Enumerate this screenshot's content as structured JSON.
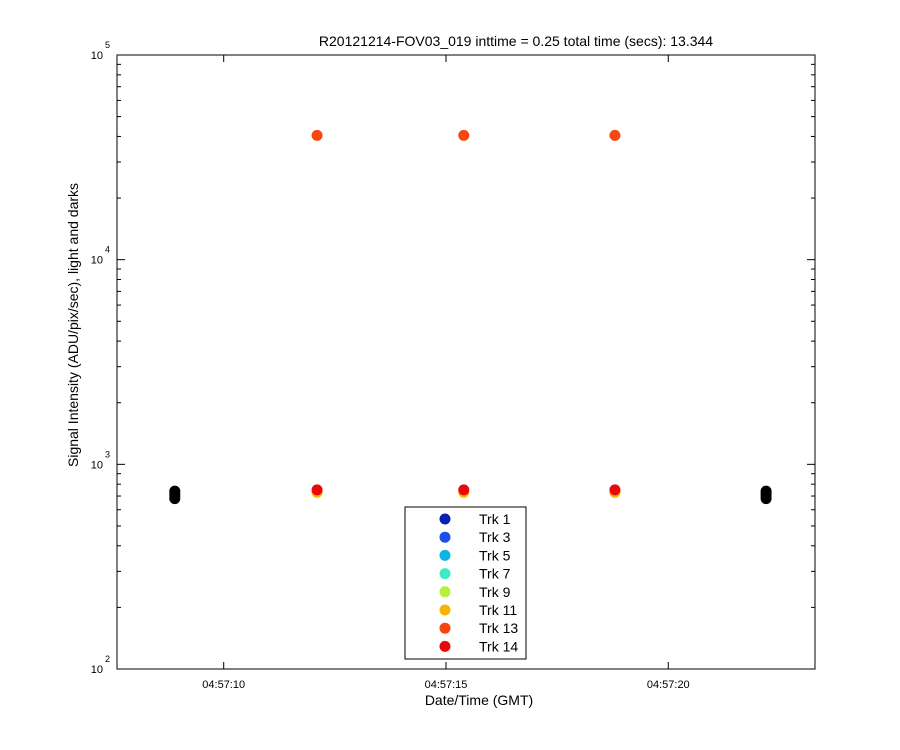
{
  "chart_data": {
    "type": "scatter",
    "title": "R20121214-FOV03_019 inttime = 0.25 total time (secs): 13.344",
    "xlabel": "Date/Time (GMT)",
    "ylabel": "Signal Intensity (ADU/pix/sec), light and darks",
    "y_scale": "log",
    "ylim": [
      100,
      100000
    ],
    "xlim": [
      "04:57:07.6",
      "04:57:23.3"
    ],
    "x_ticks": [
      "04:57:10",
      "04:57:15",
      "04:57:20"
    ],
    "y_ticks": [
      {
        "base": "10",
        "exp": "2",
        "value": 100
      },
      {
        "base": "10",
        "exp": "3",
        "value": 1000
      },
      {
        "base": "10",
        "exp": "4",
        "value": 10000
      },
      {
        "base": "10",
        "exp": "5",
        "value": 100000
      }
    ],
    "grid": false,
    "legend_position": "bottom-center",
    "series": [
      {
        "name": "Trk 1",
        "color": "#0a1fb4",
        "points": []
      },
      {
        "name": "Trk 3",
        "color": "#1d4ff0",
        "points": []
      },
      {
        "name": "Trk 5",
        "color": "#0ab4e6",
        "points": []
      },
      {
        "name": "Trk 7",
        "color": "#3ceac8",
        "points": []
      },
      {
        "name": "Trk 9",
        "color": "#b4f03c",
        "points": []
      },
      {
        "name": "Trk 11",
        "color": "#f8b400",
        "points": [
          [
            "04:57:12.1",
            730
          ],
          [
            "04:57:15.4",
            730
          ],
          [
            "04:57:18.8",
            730
          ]
        ]
      },
      {
        "name": "Trk 13",
        "color": "#f84610",
        "points": [
          [
            "04:57:12.1",
            40500
          ],
          [
            "04:57:15.4",
            40500
          ],
          [
            "04:57:18.8",
            40500
          ]
        ]
      },
      {
        "name": "Trk 14",
        "color": "#e80a0a",
        "points": [
          [
            "04:57:12.1",
            750
          ],
          [
            "04:57:15.4",
            750
          ],
          [
            "04:57:18.8",
            750
          ]
        ]
      }
    ],
    "darks": {
      "color": "#000000",
      "points": [
        [
          "04:57:08.9",
          680
        ],
        [
          "04:57:08.9",
          700
        ],
        [
          "04:57:08.9",
          720
        ],
        [
          "04:57:08.9",
          740
        ],
        [
          "04:57:22.2",
          680
        ],
        [
          "04:57:22.2",
          700
        ],
        [
          "04:57:22.2",
          720
        ],
        [
          "04:57:22.2",
          740
        ]
      ]
    }
  }
}
